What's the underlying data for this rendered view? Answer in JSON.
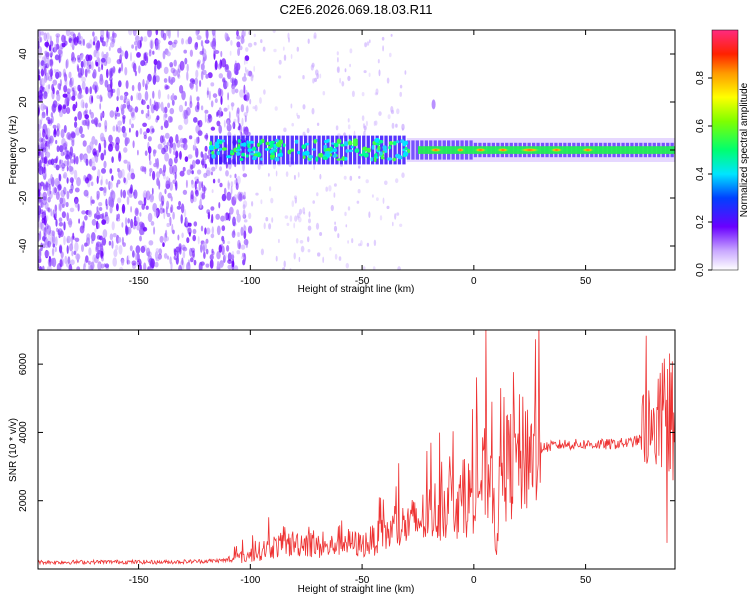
{
  "title": "C2E6.2026.069.18.03.R11",
  "chart_data": [
    {
      "type": "heatmap",
      "xlabel": "Height of straight line (km)",
      "ylabel": "Frequency (Hz)",
      "xlim": [
        -195,
        90
      ],
      "ylim": [
        -50,
        50
      ],
      "xticks": [
        -150,
        -100,
        -50,
        0,
        50
      ],
      "yticks": [
        -40,
        -20,
        0,
        20,
        40
      ],
      "colorbar": {
        "label": "Normalized spectral amplitude",
        "range": [
          0,
          1
        ],
        "ticks": [
          "0.0",
          "0.2",
          "0.4",
          "0.6",
          "0.8"
        ]
      }
    },
    {
      "type": "line",
      "xlabel": "Height of straight line (km)",
      "ylabel": "SNR (10 * v/v)",
      "xlim": [
        -195,
        90
      ],
      "ylim": [
        0,
        7000
      ],
      "xticks": [
        -150,
        -100,
        -50,
        0,
        50
      ],
      "yticks": [
        2000,
        4000,
        6000
      ],
      "line_color": "#ee3333",
      "series": [
        {
          "name": "SNR",
          "x": [
            -195,
            -180,
            -160,
            -140,
            -120,
            -110,
            -100,
            -95,
            -90,
            -85,
            -80,
            -75,
            -70,
            -65,
            -60,
            -55,
            -50,
            -45,
            -40,
            -35,
            -30,
            -25,
            -20,
            -15,
            -10,
            -5,
            0,
            5,
            8,
            10,
            12,
            15,
            20,
            25,
            30,
            35,
            40,
            50,
            60,
            70,
            75,
            78,
            80,
            82,
            84,
            86,
            88,
            90
          ],
          "values": [
            200,
            200,
            210,
            200,
            230,
            260,
            400,
            550,
            650,
            700,
            750,
            780,
            650,
            600,
            850,
            750,
            700,
            850,
            1000,
            1150,
            1300,
            1400,
            1600,
            1800,
            2000,
            1900,
            2300,
            2700,
            3000,
            600,
            2800,
            3000,
            3300,
            3500,
            3550,
            3600,
            3650,
            3650,
            3650,
            3700,
            3800,
            4200,
            3500,
            4600,
            3300,
            4800,
            2500,
            3800
          ]
        }
      ]
    }
  ]
}
